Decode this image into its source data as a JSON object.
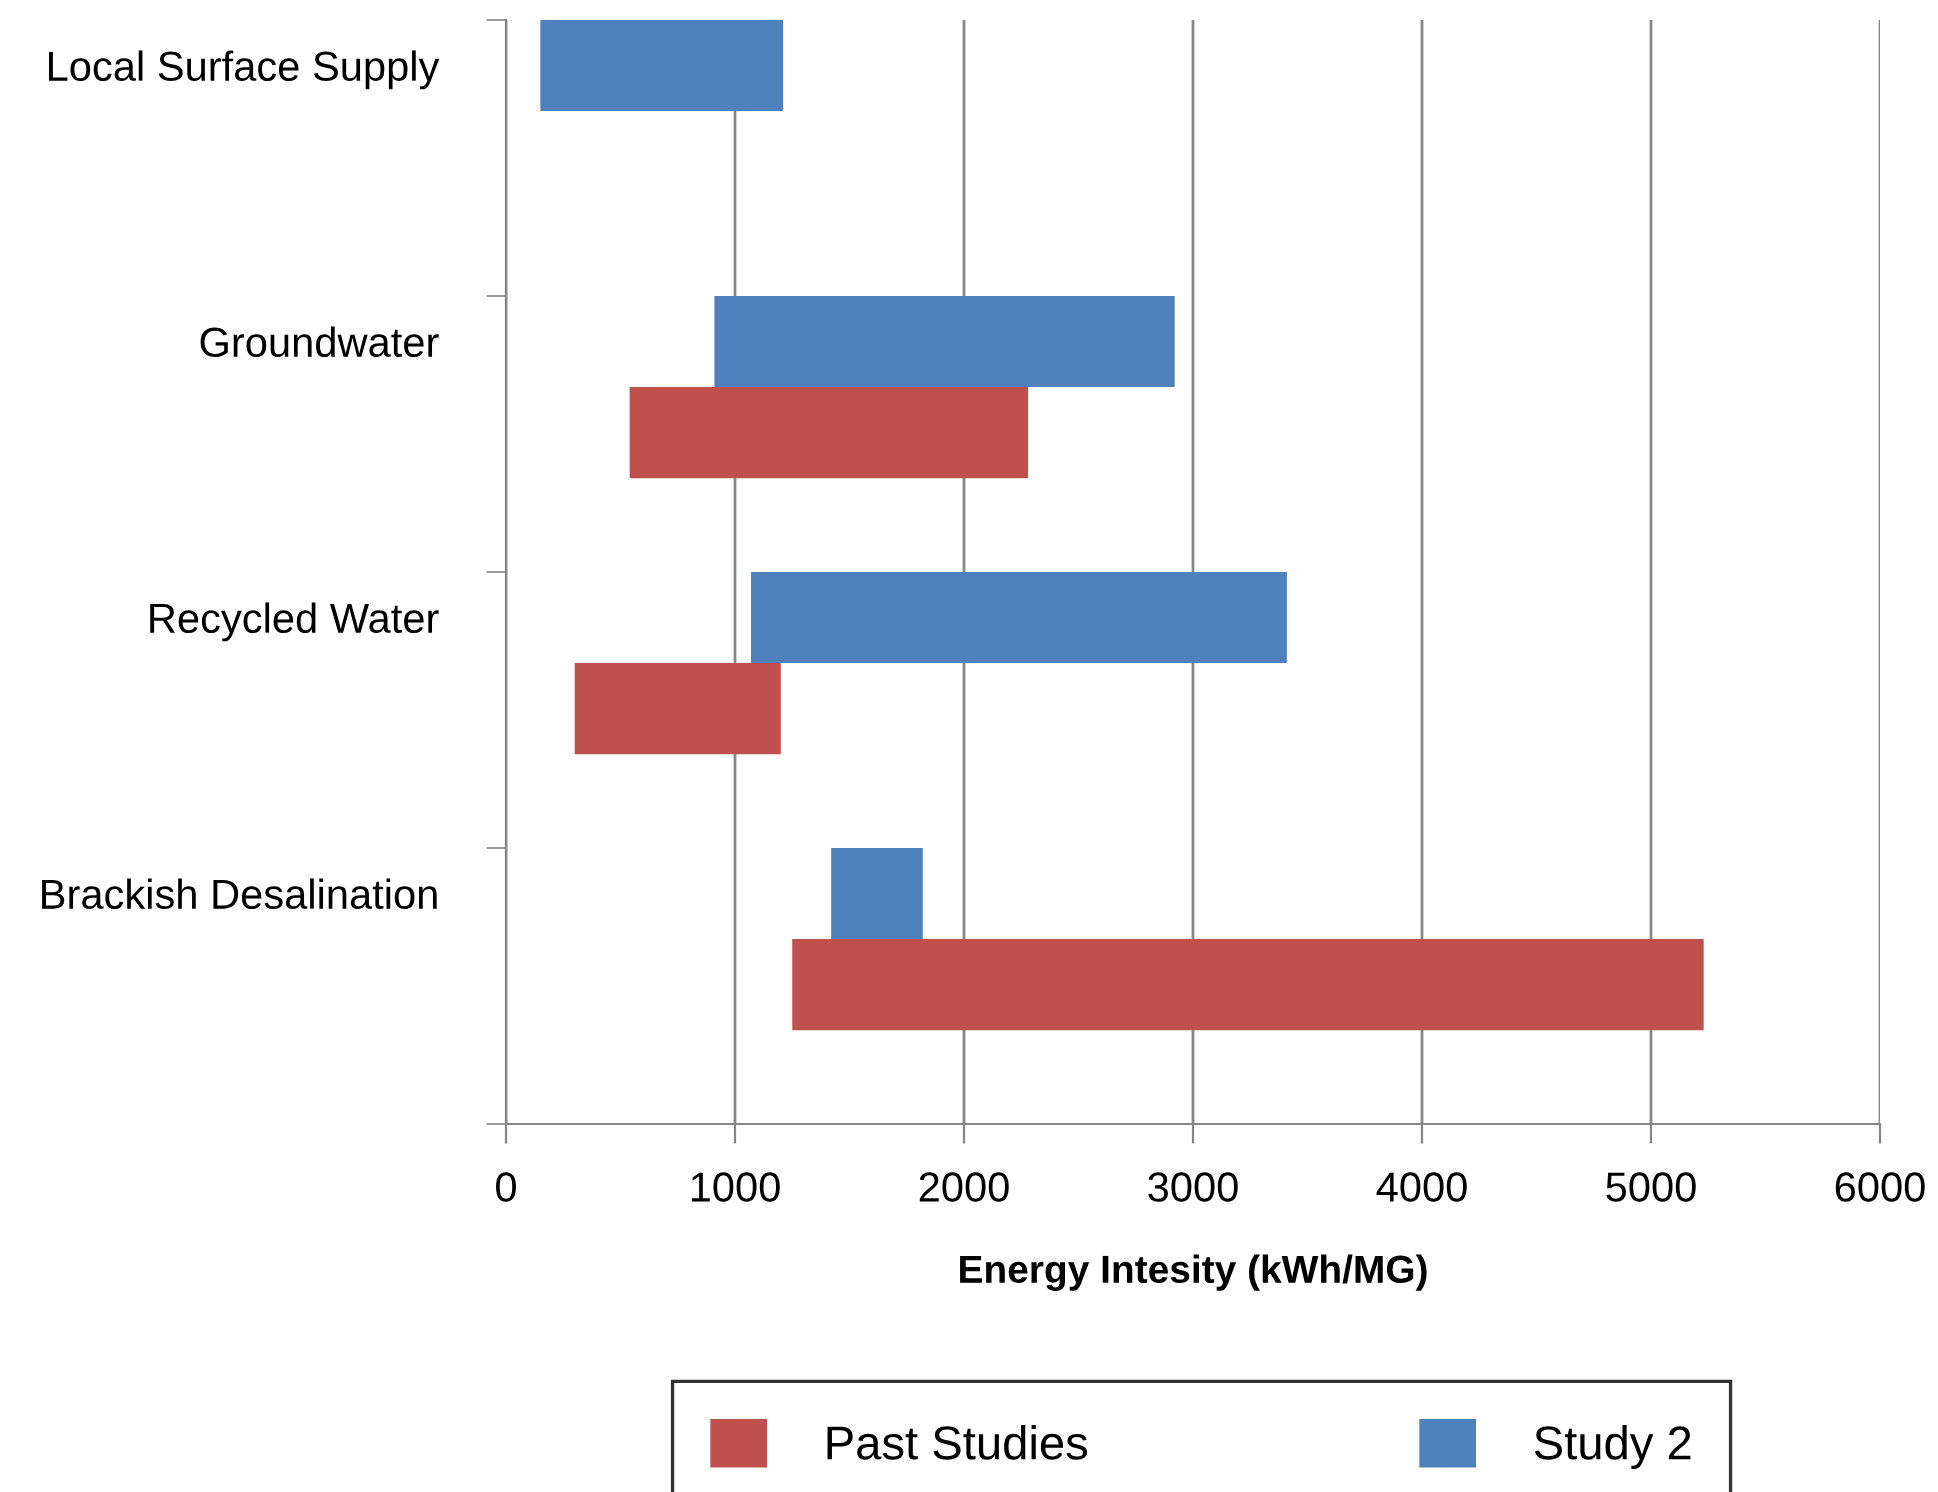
{
  "chart_data": {
    "type": "bar",
    "orientation": "horizontal",
    "categories": [
      "Local Surface Supply",
      "Groundwater",
      "Recycled Water",
      "Brackish Desalination"
    ],
    "series": [
      {
        "name": "Past Studies",
        "color": "#c0504d",
        "base": [
          null,
          540,
          300,
          1250
        ],
        "values": [
          null,
          1740,
          900,
          3980
        ]
      },
      {
        "name": "Study 2",
        "color": "#4f81bd",
        "base": [
          150,
          910,
          1070,
          1420
        ],
        "values": [
          1060,
          2010,
          2340,
          400
        ]
      }
    ],
    "xlabel": "Energy Intesity (kWh/MG)",
    "xlim": [
      0,
      6000
    ],
    "xticks": [
      0,
      1000,
      2000,
      3000,
      4000,
      5000,
      6000
    ],
    "grid": "x",
    "legend": "bottom"
  }
}
